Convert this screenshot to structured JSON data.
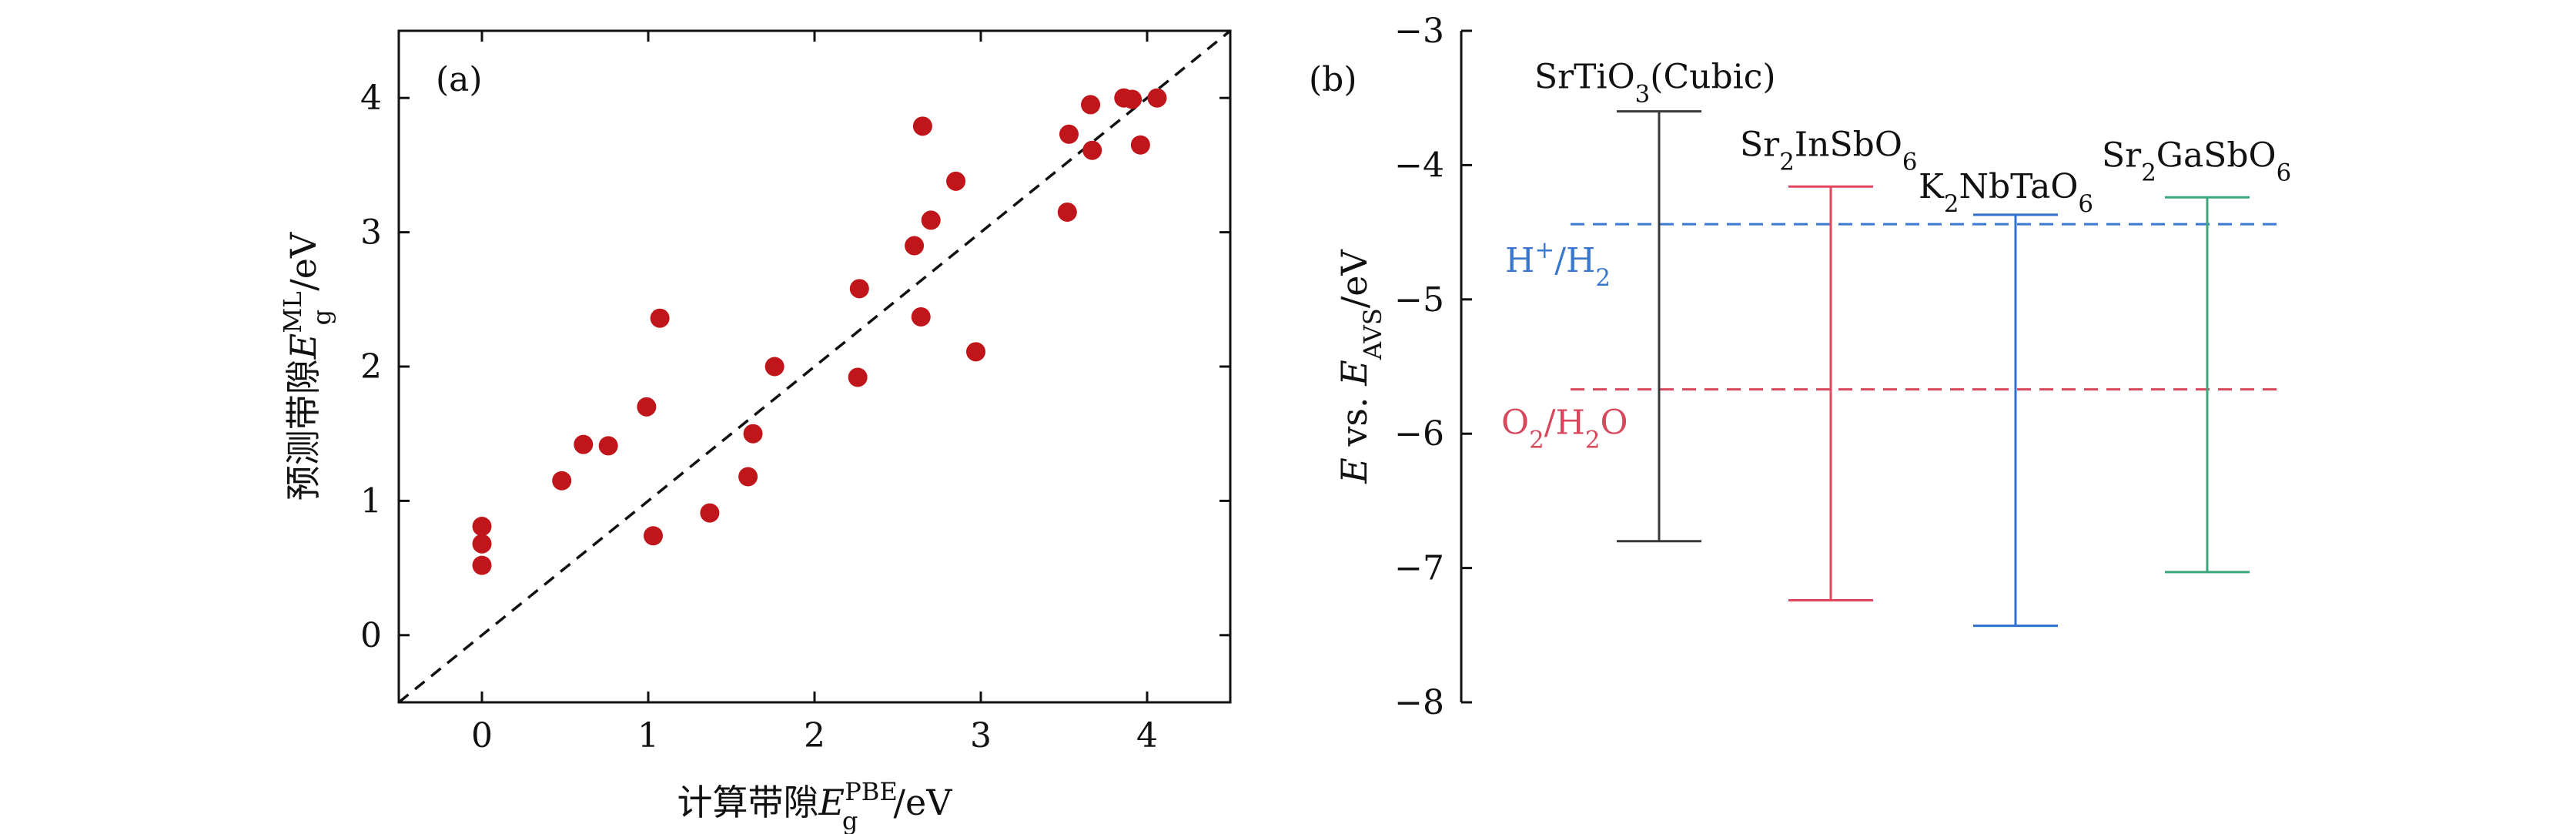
{
  "colors": {
    "points": "#c0161b",
    "diagonal": "#111111",
    "SrTiO3": "#3a3a3a",
    "Sr2InSbO6": "#e2455e",
    "K2NbTaO6": "#2f6fd0",
    "Sr2GaSbO6": "#3aa87a",
    "H_ref": "#3a78d0",
    "O_ref": "#d8485c"
  },
  "panels": {
    "a": {
      "label": "(a)",
      "xlabel_cn": "计算带隙",
      "xlabel_sym": "E",
      "xlabel_sub": "g",
      "xlabel_sup": "PBE",
      "xlabel_unit": "/eV",
      "ylabel_cn": "预测带隙",
      "ylabel_sym": "E",
      "ylabel_sub": "g",
      "ylabel_sup": "ML",
      "ylabel_unit": "/eV"
    },
    "b": {
      "label": "(b)",
      "ylabel_sym": "E",
      "ylabel_mid": " vs. ",
      "ylabel_sym2": "E",
      "ylabel_sub": "AVS",
      "ylabel_unit": "/eV"
    }
  },
  "chart_data": [
    {
      "type": "scatter",
      "xlim": [
        -0.5,
        4.5
      ],
      "ylim": [
        -0.5,
        4.5
      ],
      "xticks": [
        "0",
        "1",
        "2",
        "3",
        "4"
      ],
      "yticks": [
        "0",
        "1",
        "2",
        "3",
        "4"
      ],
      "grid": false,
      "reference_line": "y = x",
      "points": [
        [
          0.0,
          0.52
        ],
        [
          0.0,
          0.68
        ],
        [
          0.0,
          0.81
        ],
        [
          0.48,
          1.15
        ],
        [
          0.61,
          1.42
        ],
        [
          0.76,
          1.41
        ],
        [
          0.99,
          1.7
        ],
        [
          1.03,
          0.74
        ],
        [
          1.07,
          2.36
        ],
        [
          1.37,
          0.91
        ],
        [
          1.6,
          1.18
        ],
        [
          1.63,
          1.5
        ],
        [
          1.76,
          2.0
        ],
        [
          2.26,
          1.92
        ],
        [
          2.27,
          2.58
        ],
        [
          2.6,
          2.9
        ],
        [
          2.64,
          2.37
        ],
        [
          2.65,
          3.79
        ],
        [
          2.7,
          3.09
        ],
        [
          2.85,
          3.38
        ],
        [
          2.97,
          2.11
        ],
        [
          3.52,
          3.15
        ],
        [
          3.53,
          3.73
        ],
        [
          3.66,
          3.95
        ],
        [
          3.67,
          3.61
        ],
        [
          3.86,
          4.0
        ],
        [
          3.91,
          3.99
        ],
        [
          3.96,
          3.65
        ],
        [
          4.06,
          4.0
        ]
      ]
    },
    {
      "type": "band-edge diagram",
      "ylim": [
        -8,
        -3
      ],
      "yticks": [
        "−3",
        "−4",
        "−5",
        "−6",
        "−7",
        "−8"
      ],
      "bands": [
        {
          "name": "SrTiO3(Cubic)",
          "formula": [
            [
              "SrTiO",
              ""
            ],
            [
              "3",
              "sub"
            ],
            [
              "(Cubic)",
              ""
            ]
          ],
          "cbm": -3.6,
          "vbm": -6.8
        },
        {
          "name": "Sr2InSbO6",
          "formula": [
            [
              "Sr",
              ""
            ],
            [
              "2",
              "sub"
            ],
            [
              "InSbO",
              ""
            ],
            [
              "6",
              "sub"
            ]
          ],
          "cbm": -4.16,
          "vbm": -7.24
        },
        {
          "name": "K2NbTaO6",
          "formula": [
            [
              "K",
              ""
            ],
            [
              "2",
              "sub"
            ],
            [
              "NbTaO",
              ""
            ],
            [
              "6",
              "sub"
            ]
          ],
          "cbm": -4.37,
          "vbm": -7.43
        },
        {
          "name": "Sr2GaSbO6",
          "formula": [
            [
              "Sr",
              ""
            ],
            [
              "2",
              "sub"
            ],
            [
              "GaSbO",
              ""
            ],
            [
              "6",
              "sub"
            ]
          ],
          "cbm": -4.24,
          "vbm": -7.03
        }
      ],
      "reference_levels": [
        {
          "name": "H+/H2",
          "formula": [
            [
              "H",
              ""
            ],
            [
              "+",
              "sup"
            ],
            [
              "/H",
              ""
            ],
            [
              "2",
              "sub"
            ]
          ],
          "value": -4.44
        },
        {
          "name": "O2/H2O",
          "formula": [
            [
              "O",
              ""
            ],
            [
              "2",
              "sub"
            ],
            [
              "/H",
              ""
            ],
            [
              "2",
              "sub"
            ],
            [
              "O",
              ""
            ]
          ],
          "value": -5.67
        }
      ]
    }
  ]
}
